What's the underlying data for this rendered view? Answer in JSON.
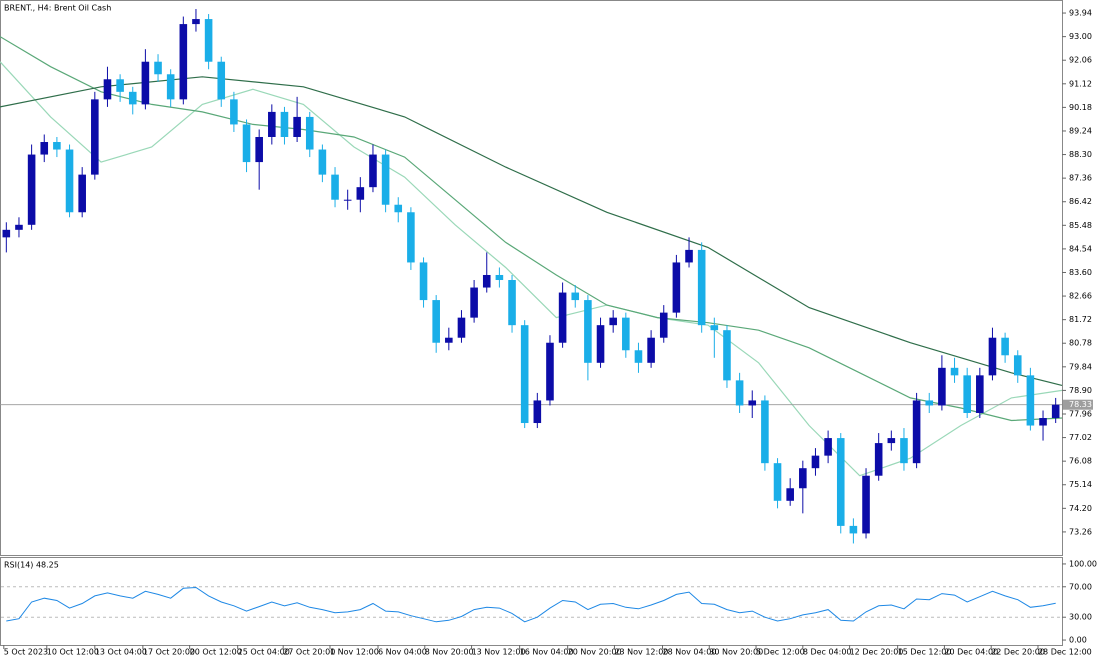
{
  "chart_data": [
    {
      "type": "candlestick",
      "title": "BRENT., H4:  Brent Oil Cash",
      "open": [
        85.0,
        85.3,
        85.5,
        88.3,
        88.8,
        88.5,
        86.0,
        87.5,
        90.5,
        91.3,
        90.8,
        90.3,
        92.0,
        91.5,
        90.5,
        93.5,
        93.7,
        92.0,
        90.5,
        89.5,
        88.0,
        89.0,
        90.0,
        89.0,
        89.8,
        88.5,
        87.5,
        86.5,
        86.5,
        87.0,
        88.3,
        86.3,
        86.0,
        84.0,
        82.5,
        80.8,
        81.0,
        81.8,
        83.0,
        83.5,
        83.3,
        81.5,
        77.6,
        78.5,
        80.8,
        82.8,
        82.5,
        80.0,
        81.5,
        81.8,
        80.5,
        80.0,
        81.0,
        82.0,
        84.0,
        84.5,
        81.5,
        81.3,
        79.3,
        78.3,
        78.5,
        76.0,
        74.5,
        75.0,
        75.8,
        76.3,
        77.0,
        73.5,
        73.2,
        75.5,
        76.8,
        77.0,
        76.0,
        78.5,
        78.3,
        79.8,
        79.5,
        78.0,
        79.5,
        81.0,
        80.3,
        79.5,
        77.5,
        77.8
      ],
      "high": [
        85.6,
        85.8,
        88.7,
        89.1,
        89.0,
        88.7,
        87.8,
        90.8,
        91.8,
        91.5,
        91.0,
        92.5,
        92.3,
        91.7,
        93.8,
        94.1,
        93.9,
        92.2,
        90.8,
        89.7,
        89.3,
        90.3,
        90.2,
        90.6,
        90.0,
        88.7,
        87.8,
        86.9,
        87.4,
        88.7,
        88.5,
        86.6,
        86.2,
        84.2,
        82.7,
        81.4,
        82.1,
        83.3,
        84.4,
        83.8,
        83.5,
        81.7,
        78.8,
        81.1,
        83.2,
        83.1,
        82.7,
        81.8,
        82.1,
        82.0,
        80.8,
        81.3,
        82.3,
        84.3,
        85.0,
        84.8,
        81.8,
        81.5,
        79.6,
        78.9,
        78.7,
        76.2,
        75.4,
        76.1,
        76.6,
        77.3,
        77.2,
        73.8,
        75.8,
        77.2,
        77.3,
        77.4,
        78.8,
        78.8,
        80.3,
        80.2,
        79.8,
        79.8,
        81.4,
        81.2,
        80.5,
        79.8,
        78.1,
        78.6
      ],
      "low": [
        84.4,
        85.0,
        85.3,
        88.0,
        88.2,
        85.8,
        85.8,
        87.3,
        90.2,
        90.4,
        89.9,
        90.1,
        91.2,
        90.2,
        90.3,
        93.2,
        91.7,
        90.2,
        89.2,
        87.6,
        86.9,
        88.7,
        88.7,
        88.8,
        88.2,
        87.2,
        86.2,
        86.1,
        86.0,
        86.8,
        86.0,
        85.6,
        83.7,
        82.2,
        80.4,
        80.5,
        80.8,
        81.6,
        82.8,
        83.0,
        81.2,
        77.4,
        77.4,
        78.3,
        80.6,
        82.2,
        79.3,
        79.8,
        81.2,
        80.2,
        79.6,
        79.8,
        80.8,
        81.8,
        83.8,
        81.2,
        80.2,
        79.0,
        78.0,
        77.8,
        75.7,
        74.2,
        74.3,
        74.0,
        75.5,
        76.0,
        73.2,
        72.8,
        73.0,
        75.3,
        76.5,
        75.7,
        75.8,
        78.0,
        78.1,
        79.2,
        77.8,
        77.8,
        79.3,
        80.0,
        79.2,
        77.3,
        76.9,
        77.6
      ],
      "close": [
        85.3,
        85.5,
        88.3,
        88.8,
        88.5,
        86.0,
        87.5,
        90.5,
        91.3,
        90.8,
        90.3,
        92.0,
        91.5,
        90.5,
        93.5,
        93.7,
        92.0,
        90.5,
        89.5,
        88.0,
        89.0,
        90.0,
        89.0,
        89.8,
        88.5,
        87.5,
        86.5,
        86.5,
        87.0,
        88.3,
        86.3,
        86.0,
        84.0,
        82.5,
        80.8,
        81.0,
        81.8,
        83.0,
        83.5,
        83.3,
        81.5,
        77.6,
        78.5,
        80.8,
        82.8,
        82.5,
        80.0,
        81.5,
        81.8,
        80.5,
        80.0,
        81.0,
        82.0,
        84.0,
        84.5,
        81.5,
        81.3,
        79.3,
        78.3,
        78.5,
        76.0,
        74.5,
        75.0,
        75.8,
        76.3,
        77.0,
        73.5,
        73.2,
        75.5,
        76.8,
        77.0,
        76.0,
        78.5,
        78.3,
        79.8,
        79.5,
        78.0,
        79.5,
        81.0,
        80.3,
        79.5,
        77.5,
        77.8,
        78.33
      ],
      "up_color": "#0c0ca8",
      "down_color": "#1aaee8",
      "series": [
        {
          "color": "#9ad8b8",
          "x": [
            0,
            4,
            8,
            12,
            16,
            20,
            24,
            28,
            32,
            36,
            40,
            44,
            48,
            52,
            56,
            60,
            64,
            68,
            72,
            76,
            80,
            84
          ],
          "values": [
            92.0,
            89.8,
            88.0,
            88.6,
            90.3,
            90.9,
            90.3,
            88.6,
            87.4,
            85.5,
            83.8,
            81.8,
            82.3,
            81.8,
            81.5,
            80.0,
            77.5,
            75.5,
            76.2,
            77.5,
            78.6,
            78.9
          ]
        },
        {
          "color": "#5aa878",
          "x": [
            0,
            4,
            8,
            12,
            16,
            20,
            24,
            28,
            32,
            36,
            40,
            44,
            48,
            52,
            56,
            60,
            64,
            68,
            72,
            76,
            80,
            84
          ],
          "values": [
            93.0,
            91.8,
            90.8,
            90.3,
            90.0,
            89.5,
            89.3,
            89.0,
            88.2,
            86.5,
            84.8,
            83.5,
            82.3,
            81.8,
            81.6,
            81.3,
            80.6,
            79.6,
            78.6,
            78.2,
            77.7,
            77.8
          ]
        },
        {
          "color": "#2f6e4a",
          "x": [
            0,
            8,
            16,
            24,
            32,
            40,
            48,
            56,
            64,
            72,
            80,
            84
          ],
          "values": [
            90.2,
            91.0,
            91.4,
            91.0,
            89.8,
            87.8,
            86.0,
            84.6,
            82.2,
            80.8,
            79.6,
            79.1
          ]
        }
      ],
      "last_price": 78.33,
      "xlim": [
        0,
        84
      ],
      "ylim": [
        72.34,
        94.42
      ],
      "grid": false,
      "yticks": [
        93.94,
        {
          "value": 93.0,
          "label": "93.00"
        },
        92.06,
        91.12,
        90.18,
        89.24,
        {
          "value": 88.3,
          "label": "88.30"
        },
        87.36,
        86.42,
        85.48,
        84.54,
        {
          "value": 83.6,
          "label": "83.60"
        },
        82.66,
        81.72,
        80.78,
        79.84,
        {
          "value": 78.9,
          "label": "78.90"
        },
        77.96,
        77.02,
        76.08,
        75.14,
        {
          "value": 74.2,
          "label": "74.20"
        },
        73.26
      ]
    },
    {
      "type": "line",
      "title": "RSI(14) 48.25",
      "values": [
        25,
        28,
        50,
        55,
        52,
        42,
        48,
        58,
        62,
        58,
        55,
        64,
        60,
        55,
        68,
        69,
        58,
        50,
        45,
        38,
        44,
        50,
        45,
        49,
        43,
        40,
        36,
        37,
        40,
        48,
        38,
        37,
        32,
        28,
        24,
        26,
        31,
        40,
        43,
        42,
        35,
        24,
        30,
        42,
        52,
        50,
        40,
        47,
        48,
        43,
        41,
        46,
        52,
        60,
        63,
        48,
        47,
        40,
        36,
        38,
        30,
        25,
        28,
        33,
        36,
        40,
        26,
        25,
        37,
        45,
        46,
        41,
        54,
        53,
        61,
        59,
        50,
        57,
        64,
        58,
        53,
        43,
        45,
        48.25
      ],
      "color": "#1e88e5",
      "levels": [
        70,
        30
      ],
      "xlim": [
        0,
        84
      ],
      "ylim": [
        -6.5,
        107.8
      ],
      "yticks": [
        {
          "value": 100,
          "label": "100.00"
        },
        {
          "value": 70,
          "label": "70.00"
        },
        {
          "value": 30,
          "label": "30.00"
        },
        {
          "value": 0,
          "label": "0.00"
        }
      ],
      "xticks": [
        {
          "value": 0.3,
          "label": "5 Oct 2023"
        },
        {
          "value": 3.7,
          "label": "10 Oct 12:00"
        },
        {
          "value": 7.5,
          "label": "13 Oct 04:00"
        },
        {
          "value": 11.3,
          "label": "17 Oct 20:00"
        },
        {
          "value": 15.0,
          "label": "20 Oct 12:00"
        },
        {
          "value": 18.8,
          "label": "25 Oct 04:00"
        },
        {
          "value": 22.4,
          "label": "27 Oct 20:00"
        },
        {
          "value": 26.1,
          "label": "1 Nov 12:00"
        },
        {
          "value": 29.9,
          "label": "6 Nov 04:00"
        },
        {
          "value": 33.6,
          "label": "8 Nov 20:00"
        },
        {
          "value": 37.3,
          "label": "13 Nov 12:00"
        },
        {
          "value": 41.1,
          "label": "16 Nov 04:00"
        },
        {
          "value": 44.9,
          "label": "20 Nov 20:00"
        },
        {
          "value": 48.6,
          "label": "23 Nov 12:00"
        },
        {
          "value": 52.4,
          "label": "28 Nov 04:00"
        },
        {
          "value": 56.1,
          "label": "30 Nov 20:00"
        },
        {
          "value": 59.8,
          "label": "5 Dec 12:00"
        },
        {
          "value": 63.5,
          "label": "8 Dec 04:00"
        },
        {
          "value": 67.2,
          "label": "12 Dec 20:00"
        },
        {
          "value": 71.0,
          "label": "15 Dec 12:00"
        },
        {
          "value": 74.7,
          "label": "20 Dec 04:00"
        },
        {
          "value": 78.4,
          "label": "22 Dec 20:00"
        },
        {
          "value": 82.1,
          "label": "28 Dec 12:00"
        }
      ]
    }
  ]
}
